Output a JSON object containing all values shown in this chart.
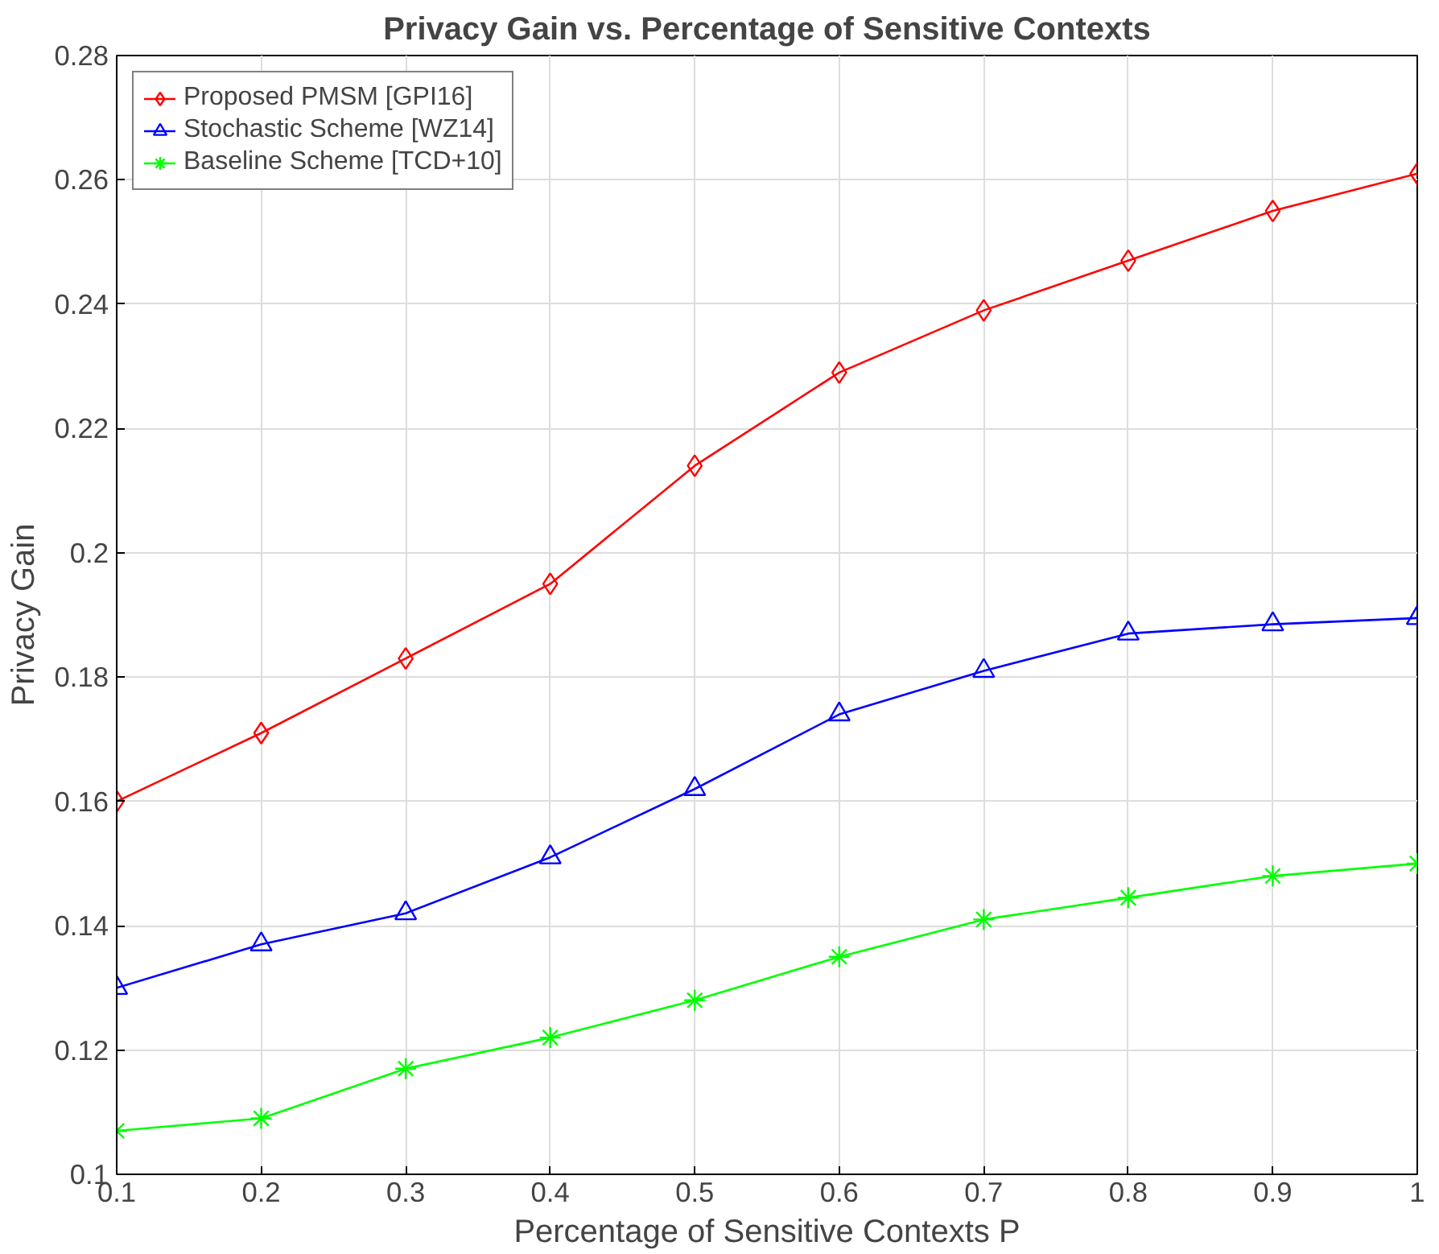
{
  "chart_data": {
    "type": "line",
    "title": "Privacy Gain vs. Percentage of Sensitive Contexts",
    "xlabel": "Percentage of Sensitive Contexts P",
    "ylabel": "Privacy Gain",
    "x": [
      0.1,
      0.2,
      0.3,
      0.4,
      0.5,
      0.6,
      0.7,
      0.8,
      0.9,
      1
    ],
    "series": [
      {
        "name": "Proposed PMSM [GPI16]",
        "color": "#ff0000",
        "marker": "diamond",
        "values": [
          0.16,
          0.171,
          0.183,
          0.195,
          0.214,
          0.229,
          0.239,
          0.247,
          0.255,
          0.261
        ]
      },
      {
        "name": "Stochastic Scheme [WZ14]",
        "color": "#0000ff",
        "marker": "triangle",
        "values": [
          0.13,
          0.137,
          0.142,
          0.151,
          0.162,
          0.174,
          0.181,
          0.187,
          0.1885,
          0.1895
        ]
      },
      {
        "name": "Baseline Scheme [TCD+10]",
        "color": "#00ff00",
        "marker": "cross",
        "values": [
          0.107,
          0.109,
          0.117,
          0.122,
          0.128,
          0.135,
          0.141,
          0.1445,
          0.148,
          0.15
        ]
      }
    ],
    "xlim": [
      0.1,
      1
    ],
    "ylim": [
      0.1,
      0.28
    ],
    "xticks": [
      0.1,
      0.2,
      0.3,
      0.4,
      0.5,
      0.6,
      0.7,
      0.8,
      0.9,
      1
    ],
    "yticks": [
      0.1,
      0.12,
      0.14,
      0.16,
      0.18,
      0.2,
      0.22,
      0.24,
      0.26,
      0.28
    ],
    "grid": true,
    "legend": "top left",
    "line_style": "solid"
  }
}
